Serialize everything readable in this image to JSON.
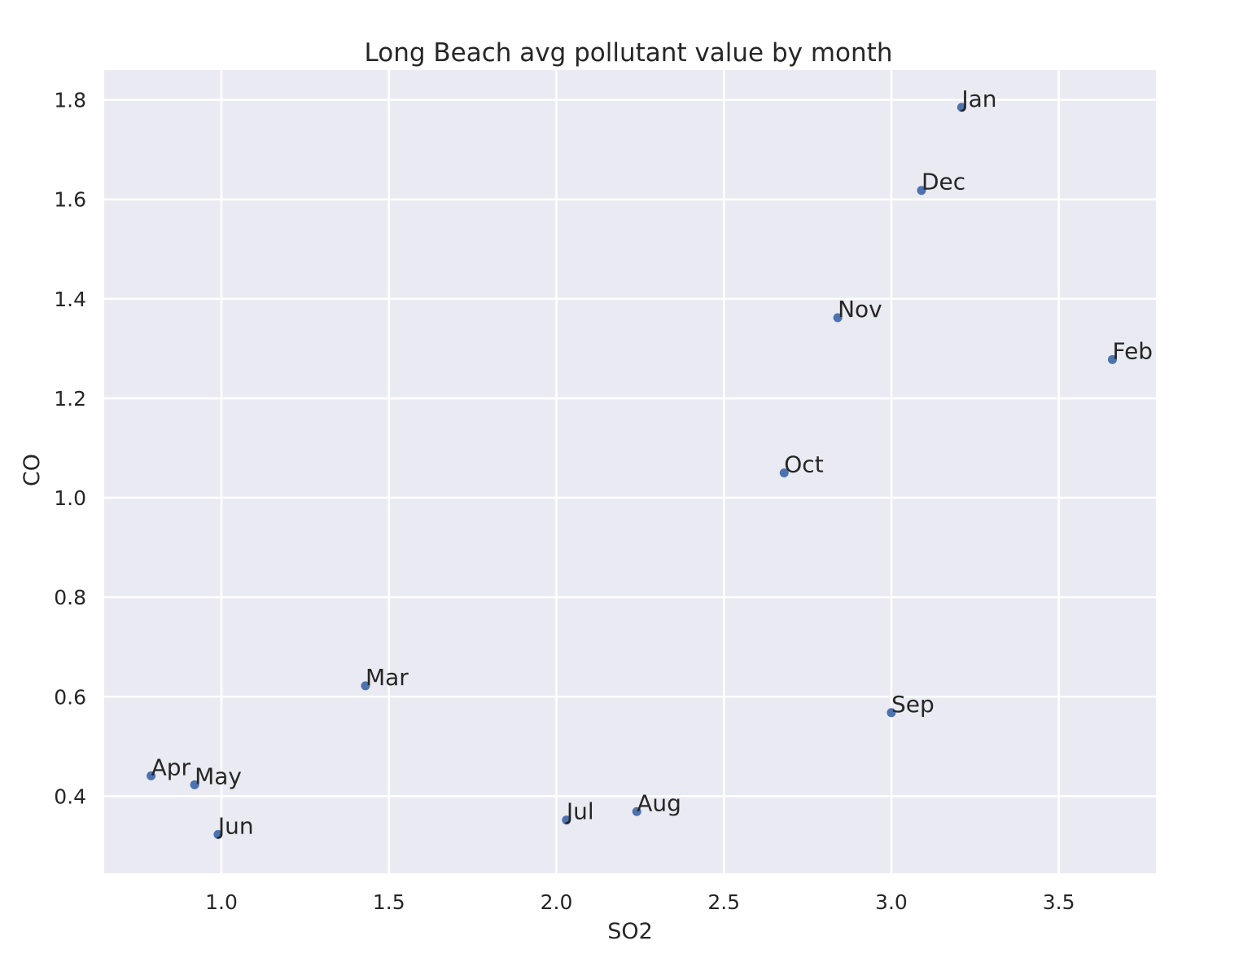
{
  "chart_data": {
    "type": "scatter",
    "title": "Long Beach avg pollutant value by month",
    "xlabel": "SO2",
    "ylabel": "CO",
    "xlim": [
      0.65,
      3.79
    ],
    "ylim": [
      0.245,
      1.86
    ],
    "xticks": [
      1.0,
      1.5,
      2.0,
      2.5,
      3.0,
      3.5
    ],
    "yticks": [
      0.4,
      0.6,
      0.8,
      1.0,
      1.2,
      1.4,
      1.6,
      1.8
    ],
    "xtick_labels": [
      "1.0",
      "1.5",
      "2.0",
      "2.5",
      "3.0",
      "3.5"
    ],
    "ytick_labels": [
      "0.4",
      "0.6",
      "0.8",
      "1.0",
      "1.2",
      "1.4",
      "1.6",
      "1.8"
    ],
    "grid": true,
    "background": "#eaeaf2",
    "point_color": "#4c72b0",
    "points": [
      {
        "label": "Jan",
        "x": 3.21,
        "y": 1.785
      },
      {
        "label": "Feb",
        "x": 3.66,
        "y": 1.278
      },
      {
        "label": "Mar",
        "x": 1.43,
        "y": 0.622
      },
      {
        "label": "Apr",
        "x": 0.79,
        "y": 0.441
      },
      {
        "label": "May",
        "x": 0.92,
        "y": 0.423
      },
      {
        "label": "Jun",
        "x": 0.99,
        "y": 0.323
      },
      {
        "label": "Jul",
        "x": 2.03,
        "y": 0.352
      },
      {
        "label": "Aug",
        "x": 2.24,
        "y": 0.369
      },
      {
        "label": "Sep",
        "x": 3.0,
        "y": 0.568
      },
      {
        "label": "Oct",
        "x": 2.68,
        "y": 1.05
      },
      {
        "label": "Nov",
        "x": 2.84,
        "y": 1.362
      },
      {
        "label": "Dec",
        "x": 3.09,
        "y": 1.618
      }
    ]
  }
}
